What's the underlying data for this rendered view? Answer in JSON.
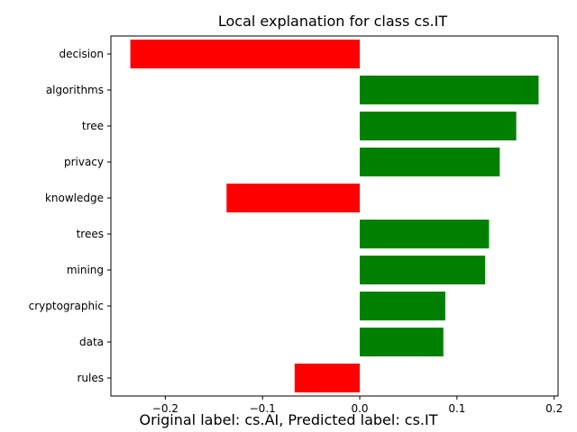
{
  "chart_data": {
    "type": "bar",
    "orientation": "horizontal",
    "title": "Local explanation for class cs.IT",
    "categories": [
      "decision",
      "algorithms",
      "tree",
      "privacy",
      "knowledge",
      "trees",
      "mining",
      "cryptographic",
      "data",
      "rules"
    ],
    "values": [
      -0.236,
      0.184,
      0.161,
      0.144,
      -0.137,
      0.133,
      0.129,
      0.088,
      0.086,
      -0.067
    ],
    "xlim": [
      -0.256,
      0.204
    ],
    "xticks": [
      -0.2,
      -0.1,
      0.0,
      0.1,
      0.2
    ],
    "xtick_labels": [
      "−0.2",
      "−0.1",
      "0.0",
      "0.1",
      "0.2"
    ],
    "xlabel": "",
    "ylabel": "",
    "positive_color": "#008000",
    "negative_color": "#ff0000",
    "grid": false,
    "legend": "none"
  },
  "caption": "Original label: cs.AI, Predicted label: cs.IT"
}
